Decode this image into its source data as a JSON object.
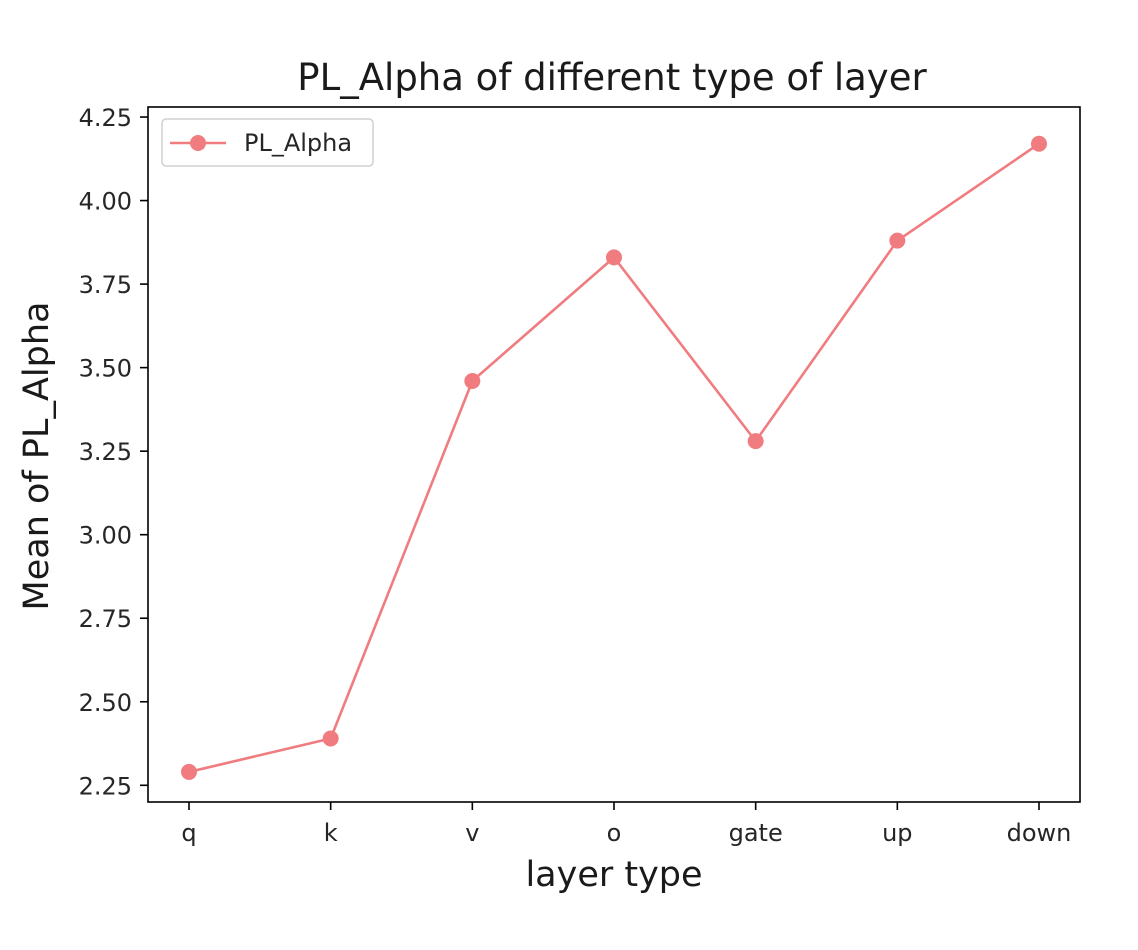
{
  "chart_data": {
    "type": "line",
    "title": "PL_Alpha of different type of layer",
    "xlabel": "layer type",
    "ylabel": "Mean of PL_Alpha",
    "categories": [
      "q",
      "k",
      "v",
      "o",
      "gate",
      "up",
      "down"
    ],
    "series": [
      {
        "name": "PL_Alpha",
        "color": "#f07c80",
        "values": [
          2.29,
          2.39,
          3.46,
          3.83,
          3.28,
          3.88,
          4.17
        ]
      }
    ],
    "ylim": [
      2.2,
      4.28
    ],
    "yticks": [
      2.25,
      2.5,
      2.75,
      3.0,
      3.25,
      3.5,
      3.75,
      4.0,
      4.25
    ],
    "ytick_labels": [
      "2.25",
      "2.50",
      "2.75",
      "3.00",
      "3.25",
      "3.50",
      "3.75",
      "4.00",
      "4.25"
    ],
    "grid": false,
    "legend": {
      "position": "top-left"
    },
    "marker": "circle"
  }
}
